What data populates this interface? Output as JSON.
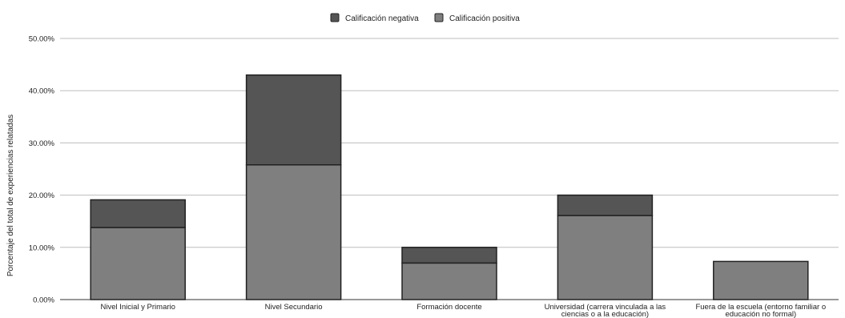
{
  "chart_data": {
    "type": "bar",
    "stacked": true,
    "ylabel": "Porcentaje del total de experiencias relatadas",
    "xlabel": "",
    "ylim": [
      0,
      50
    ],
    "yticks": [
      "0.00%",
      "10.00%",
      "20.00%",
      "30.00%",
      "40.00%",
      "50.00%"
    ],
    "grid": true,
    "legend_position": "top-center",
    "categories": [
      [
        "Nivel Inicial y Primario"
      ],
      [
        "Nivel Secundario"
      ],
      [
        "Formación docente"
      ],
      [
        "Universidad (carrera vinculada a las",
        "ciencias o a la educación)"
      ],
      [
        "Fuera de la escuela (entorno familiar o",
        "educación no formal)"
      ]
    ],
    "series": [
      {
        "name": "Calificación positiva",
        "color": "#7f7f7f",
        "values": [
          13.8,
          25.8,
          7.0,
          16.1,
          7.3
        ]
      },
      {
        "name": "Calificación negativa",
        "color": "#555555",
        "values": [
          5.3,
          17.2,
          3.0,
          3.9,
          0.0
        ]
      }
    ]
  }
}
